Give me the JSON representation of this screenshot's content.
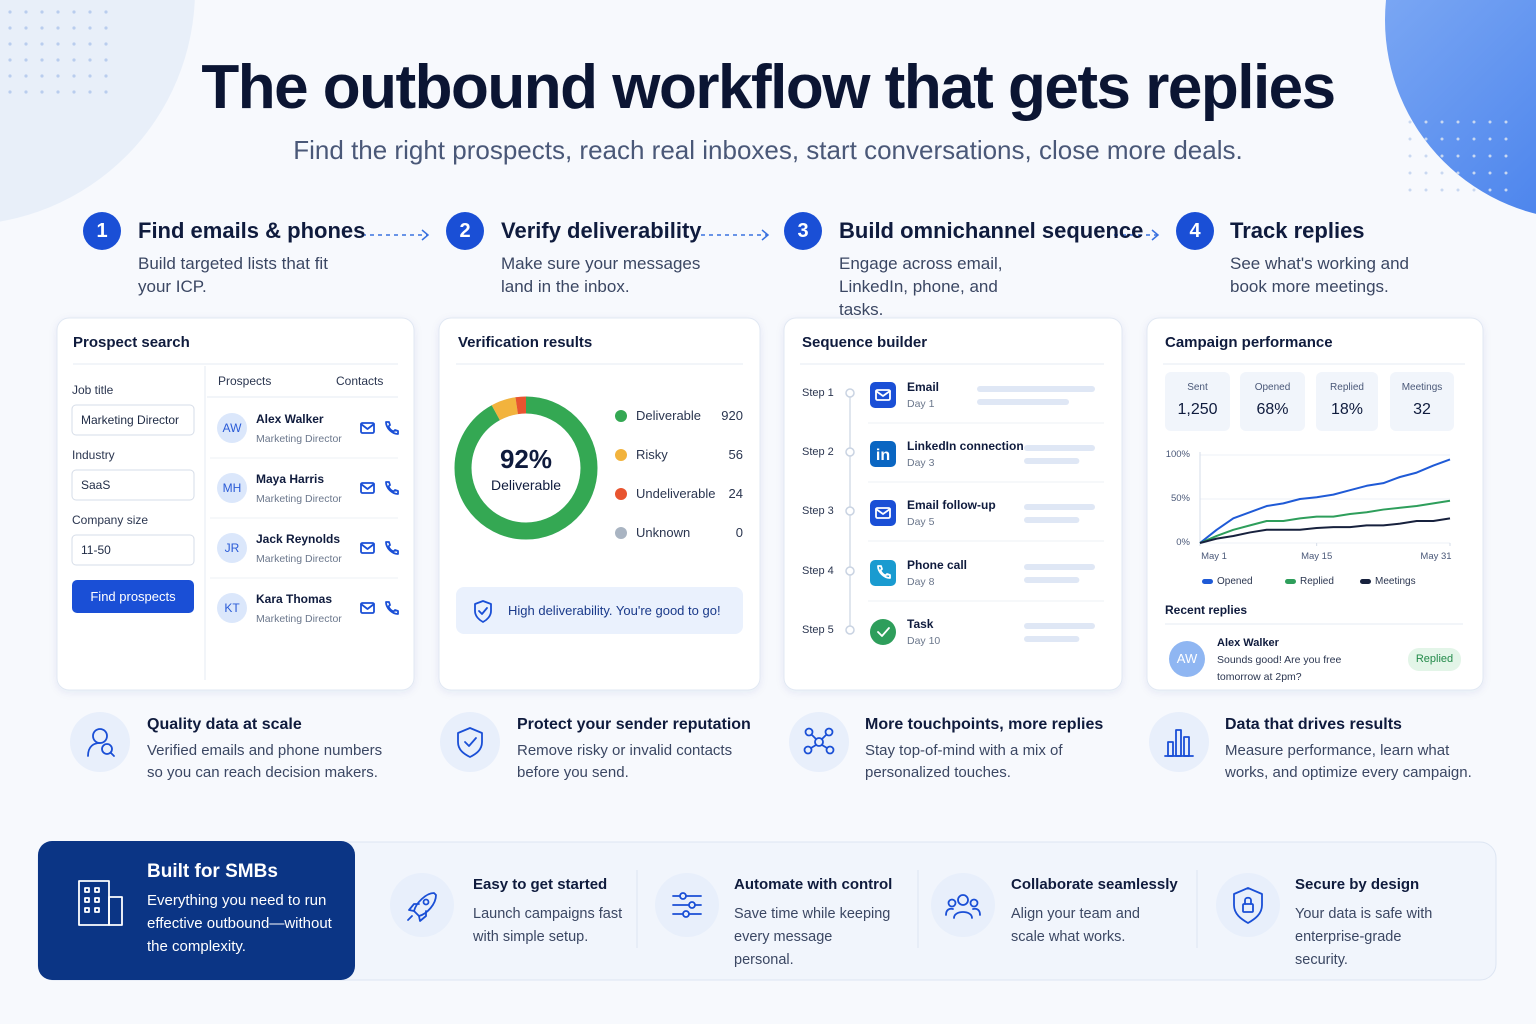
{
  "header": {
    "title": "The outbound workflow that gets replies",
    "subtitle": "Find the right prospects, reach real inboxes, start conversations, close more deals."
  },
  "steps": [
    {
      "number": "1",
      "title": "Find emails & phones",
      "description": "Build targeted lists that fit your ICP."
    },
    {
      "number": "2",
      "title": "Verify deliverability",
      "description": "Make sure your messages land in the inbox."
    },
    {
      "number": "3",
      "title": "Build omnichannel sequence",
      "description": "Engage across email, LinkedIn, phone, and tasks."
    },
    {
      "number": "4",
      "title": "Track replies",
      "description": "See what's working and book more meetings."
    }
  ],
  "prospect_search": {
    "title": "Prospect search",
    "fields": [
      {
        "label": "Job title",
        "value": "Marketing Director"
      },
      {
        "label": "Industry",
        "value": "SaaS"
      },
      {
        "label": "Company size",
        "value": "11-50"
      }
    ],
    "button": "Find prospects",
    "columns": [
      "Prospects",
      "Contacts"
    ],
    "prospects": [
      {
        "initials": "AW",
        "name": "Alex Walker",
        "role": "Marketing Director"
      },
      {
        "initials": "MH",
        "name": "Maya Harris",
        "role": "Marketing Director"
      },
      {
        "initials": "JR",
        "name": "Jack Reynolds",
        "role": "Marketing Director"
      },
      {
        "initials": "KT",
        "name": "Kara Thomas",
        "role": "Marketing Director"
      }
    ]
  },
  "verification": {
    "title": "Verification results",
    "note": "High deliverability. You're good to go!"
  },
  "sequence": {
    "title": "Sequence builder",
    "steps": [
      {
        "step": "Step 1",
        "name": "Email",
        "day": "Day 1"
      },
      {
        "step": "Step 2",
        "name": "LinkedIn connection",
        "day": "Day 3"
      },
      {
        "step": "Step 3",
        "name": "Email follow-up",
        "day": "Day 5"
      },
      {
        "step": "Step 4",
        "name": "Phone call",
        "day": "Day 8"
      },
      {
        "step": "Step 5",
        "name": "Task",
        "day": "Day 10"
      }
    ]
  },
  "campaign": {
    "title": "Campaign performance",
    "stats": [
      {
        "label": "Sent",
        "value": "1,250"
      },
      {
        "label": "Opened",
        "value": "68%"
      },
      {
        "label": "Replied",
        "value": "18%"
      },
      {
        "label": "Meetings",
        "value": "32"
      }
    ],
    "recent_title": "Recent replies",
    "reply": {
      "initials": "AW",
      "name": "Alex Walker",
      "message": "Sounds good! Are you free tomorrow at 2pm?",
      "status": "Replied"
    }
  },
  "chart_data": [
    {
      "type": "donut",
      "categories": [
        "Deliverable",
        "Risky",
        "Undeliverable",
        "Unknown"
      ],
      "values": [
        920,
        56,
        24,
        0
      ],
      "colors": [
        "#34a853",
        "#f2b33d",
        "#e8542f",
        "#a9b4c2"
      ],
      "center_value": "92%",
      "center_label": "Deliverable"
    },
    {
      "type": "line",
      "x": [
        1,
        3,
        5,
        7,
        9,
        11,
        13,
        15,
        17,
        19,
        21,
        23,
        25,
        27,
        29,
        31
      ],
      "xlim": [
        1,
        31
      ],
      "xticks": [
        {
          "value": 1,
          "label": "May 1"
        },
        {
          "value": 15,
          "label": "May 15"
        },
        {
          "value": 31,
          "label": "May 31"
        }
      ],
      "ylim": [
        0,
        100
      ],
      "yticks": [
        {
          "value": 0,
          "label": "0%"
        },
        {
          "value": 50,
          "label": "50%"
        },
        {
          "value": 100,
          "label": "100%"
        }
      ],
      "grid": true,
      "series": [
        {
          "name": "Opened",
          "color": "#1f5ad6",
          "values": [
            0,
            15,
            28,
            35,
            42,
            45,
            50,
            52,
            55,
            60,
            65,
            68,
            75,
            80,
            88,
            95
          ]
        },
        {
          "name": "Replied",
          "color": "#2e9e5b",
          "values": [
            0,
            8,
            15,
            20,
            25,
            25,
            28,
            30,
            30,
            33,
            35,
            38,
            40,
            42,
            45,
            48
          ]
        },
        {
          "name": "Meetings",
          "color": "#17213d",
          "values": [
            0,
            5,
            8,
            12,
            15,
            15,
            15,
            17,
            18,
            18,
            20,
            20,
            22,
            25,
            25,
            28
          ]
        }
      ]
    }
  ],
  "features": [
    {
      "title": "Quality data at scale",
      "description": "Verified emails and phone numbers so you can reach decision makers."
    },
    {
      "title": "Protect your sender reputation",
      "description": "Remove risky or invalid contacts before you send."
    },
    {
      "title": "More touchpoints, more replies",
      "description": "Stay top-of-mind with a mix of personalized touches."
    },
    {
      "title": "Data that drives results",
      "description": "Measure performance, learn what works, and optimize every campaign."
    }
  ],
  "banner": {
    "title": "Built for SMBs",
    "description": "Everything you need to run effective outbound—without the complexity.",
    "items": [
      {
        "title": "Easy to get started",
        "description": "Launch campaigns fast with simple setup."
      },
      {
        "title": "Automate with control",
        "description": "Save time while keeping every message personal."
      },
      {
        "title": "Collaborate seamlessly",
        "description": "Align your team and scale what works."
      },
      {
        "title": "Secure by design",
        "description": "Your data is safe with enterprise-grade security."
      }
    ]
  }
}
